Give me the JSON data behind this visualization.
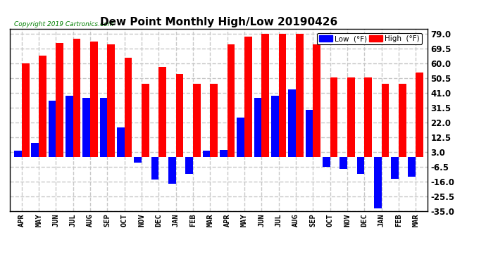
{
  "title": "Dew Point Monthly High/Low 20190426",
  "copyright": "Copyright 2019 Cartronics.com",
  "months": [
    "APR",
    "MAY",
    "JUN",
    "JUL",
    "AUG",
    "SEP",
    "OCT",
    "NOV",
    "DEC",
    "JAN",
    "FEB",
    "MAR",
    "APR",
    "MAY",
    "JUN",
    "JUL",
    "AUG",
    "SEP",
    "OCT",
    "NOV",
    "DEC",
    "JAN",
    "FEB",
    "MAR"
  ],
  "high_values": [
    60.0,
    65.0,
    73.0,
    76.0,
    74.0,
    72.0,
    63.5,
    47.0,
    57.5,
    53.0,
    47.0,
    47.0,
    72.0,
    77.0,
    79.0,
    79.0,
    79.0,
    72.0,
    51.0,
    51.0,
    51.0,
    47.0,
    47.0,
    54.0
  ],
  "low_values": [
    4.0,
    9.0,
    36.0,
    39.0,
    38.0,
    38.0,
    19.0,
    -4.0,
    -14.5,
    -17.5,
    -11.0,
    4.0,
    4.5,
    25.0,
    38.0,
    39.0,
    43.0,
    30.0,
    -6.5,
    -8.0,
    -11.0,
    -33.0,
    -14.0,
    -13.0
  ],
  "high_color": "#ff0000",
  "low_color": "#0000ff",
  "bg_color": "#ffffff",
  "grid_color": "#c8c8c8",
  "ylim": [
    -35.0,
    82.0
  ],
  "yticks": [
    -35.0,
    -25.5,
    -16.0,
    -6.5,
    3.0,
    12.5,
    22.0,
    31.5,
    41.0,
    50.5,
    60.0,
    69.5,
    79.0
  ],
  "legend_low_label": "Low  (°F)",
  "legend_high_label": "High  (°F)"
}
